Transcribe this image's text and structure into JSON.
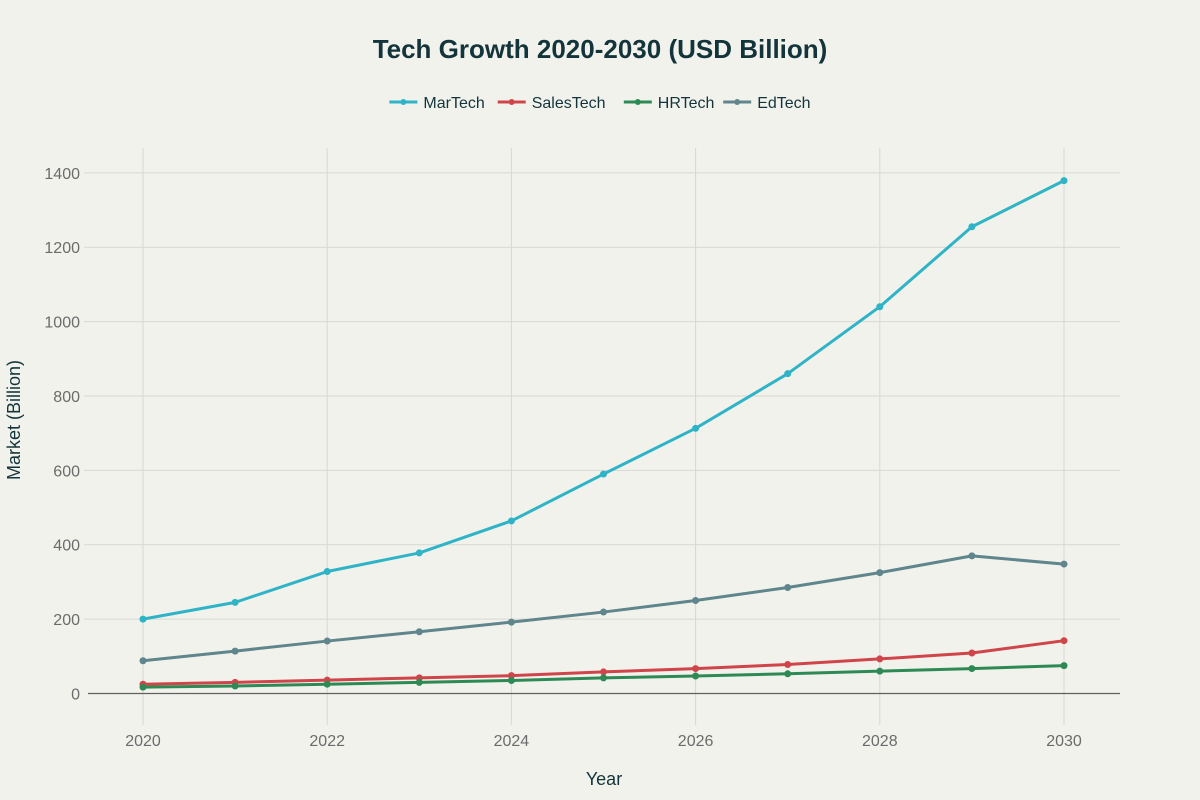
{
  "chart_data": {
    "type": "line",
    "title": "Tech Growth 2020-2030 (USD Billion)",
    "xlabel": "Year",
    "ylabel": "Market (Billion)",
    "x": [
      2020,
      2021,
      2022,
      2023,
      2024,
      2025,
      2026,
      2027,
      2028,
      2029,
      2030
    ],
    "x_ticks": [
      "2020",
      "2022",
      "2024",
      "2026",
      "2028",
      "2030"
    ],
    "y_ticks": [
      "0",
      "200",
      "400",
      "600",
      "800",
      "1000",
      "1200",
      "1400"
    ],
    "xlim": [
      2019.4,
      2030.6
    ],
    "ylim": [
      -100,
      1465
    ],
    "grid": true,
    "legend_position": "top-center",
    "series": [
      {
        "name": "MarTech",
        "color": "#2fb3c6",
        "values": [
          200,
          245,
          328,
          378,
          464,
          590,
          713,
          860,
          1040,
          1255,
          1379
        ]
      },
      {
        "name": "SalesTech",
        "color": "#d0454a",
        "values": [
          25,
          30,
          36,
          42,
          48,
          58,
          67,
          78,
          93,
          109,
          142
        ]
      },
      {
        "name": "HRTech",
        "color": "#2e8a55",
        "values": [
          17,
          20,
          25,
          30,
          35,
          42,
          47,
          53,
          60,
          67,
          75
        ]
      },
      {
        "name": "EdTech",
        "color": "#5f858d",
        "values": [
          88,
          114,
          141,
          166,
          192,
          219,
          250,
          285,
          325,
          370,
          348
        ]
      }
    ]
  }
}
